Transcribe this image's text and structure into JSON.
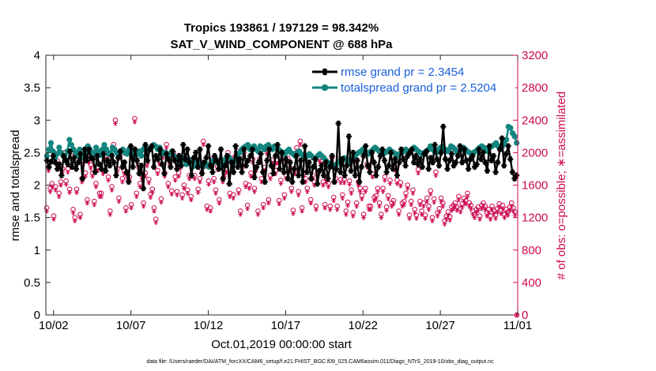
{
  "chart_data": {
    "type": "line",
    "title": "Tropics 193861 / 197129 = 98.342%",
    "subtitle": "SAT_V_WIND_COMPONENT @ 688 hPa",
    "xlabel": "Oct.01,2019 00:00:00 start",
    "ylabel_left": "rmse and totalspread",
    "ylabel_right": "# of obs: o=possible; ∗=assimilated",
    "footnote": "data file: /Users/raeder/DAI/ATM_forcXX/CAM6_setup/f.e21.FHIST_BGC.f09_025.CAM6assim.011/Diags_NTrS_2019-10/obs_diag_output.nc",
    "xlim": [
      1.5,
      32
    ],
    "ylim_left": [
      0,
      4
    ],
    "ylim_right": [
      0,
      3200
    ],
    "x_ticks": [
      2,
      7,
      12,
      17,
      22,
      27,
      32
    ],
    "x_tick_labels": [
      "10/02",
      "10/07",
      "10/12",
      "10/17",
      "10/22",
      "10/27",
      "11/01"
    ],
    "y_left_ticks": [
      "0",
      "0.5",
      "1",
      "1.5",
      "2",
      "2.5",
      "3",
      "3.5",
      "4"
    ],
    "y_right_ticks": [
      "0",
      "400",
      "800",
      "1200",
      "1600",
      "2000",
      "2400",
      "2800",
      "3200"
    ],
    "colors": {
      "rmse": "#000000",
      "spread": "#14857f",
      "obs": "#cc0a52",
      "legend_text": "#1a5fdc",
      "axis": "#262626"
    },
    "legend": [
      {
        "label": "rmse grand pr = 2.3454",
        "series": "rmse"
      },
      {
        "label": "totalspread grand pr = 2.5204",
        "series": "spread"
      }
    ],
    "series": [
      {
        "name": "rmse",
        "axis": "left",
        "values": [
          2.38,
          2.28,
          2.36,
          2.45,
          2.35,
          2.25,
          2.32,
          2.15,
          2.45,
          2.38,
          2.32,
          2.52,
          2.28,
          2.42,
          2.25,
          2.35,
          2.48,
          2.1,
          2.55,
          2.38,
          2.55,
          2.42,
          2.4,
          2.2,
          2.45,
          2.32,
          2.25,
          2.48,
          2.22,
          2.38,
          2.3,
          2.45,
          2.35,
          2.15,
          2.42,
          2.52,
          2.28,
          2.35,
          2.2,
          2.05,
          2.6,
          2.28,
          2.55,
          2.38,
          2.18,
          2.3,
          1.95,
          2.62,
          2.38,
          2.55,
          2.6,
          2.28,
          2.45,
          2.4,
          2.55,
          2.32,
          2.18,
          2.48,
          2.4,
          2.28,
          2.52,
          2.38,
          2.25,
          2.45,
          2.3,
          2.62,
          2.4,
          2.55,
          2.35,
          2.15,
          2.42,
          2.5,
          2.28,
          2.55,
          2.18,
          2.35,
          2.42,
          2.6,
          2.3,
          2.2,
          2.45,
          2.38,
          2.25,
          2.55,
          2.1,
          2.3,
          2.45,
          2.02,
          2.35,
          2.2,
          2.6,
          2.28,
          2.4,
          2.2,
          2.55,
          2.3,
          2.38,
          2.45,
          2.55,
          2.12,
          2.28,
          2.35,
          2.48,
          2.2,
          2.05,
          2.38,
          2.55,
          2.3,
          2.18,
          2.45,
          2.62,
          2.25,
          2.5,
          2.2,
          2.4,
          2.1,
          2.35,
          2.05,
          2.25,
          2.45,
          2.15,
          2.38,
          2.05,
          2.6,
          2.2,
          2.35,
          2.1,
          2.28,
          2.4,
          2.02,
          2.22,
          2.3,
          2.15,
          2.35,
          2.1,
          2.28,
          2.45,
          2.05,
          2.25,
          2.95,
          2.2,
          2.4,
          2.15,
          2.3,
          2.75,
          2.22,
          2.5,
          2.15,
          2.38,
          2.05,
          2.28,
          2.45,
          2.6,
          2.3,
          2.2,
          2.5,
          2.35,
          2.15,
          2.28,
          2.45,
          2.55,
          2.38,
          2.2,
          2.3,
          2.5,
          2.25,
          2.4,
          2.15,
          2.35,
          2.55,
          2.4,
          2.3,
          2.45,
          2.5,
          2.55,
          2.35,
          2.45,
          2.32,
          2.4,
          2.28,
          2.48,
          2.52,
          2.25,
          2.42,
          2.35,
          2.62,
          2.4,
          2.3,
          2.5,
          2.9,
          2.4,
          2.25,
          2.38,
          2.48,
          2.3,
          2.35,
          2.45,
          2.6,
          2.35,
          2.55,
          2.38,
          2.25,
          2.4,
          2.45,
          2.28,
          2.32,
          2.55,
          2.4,
          2.5,
          2.35,
          2.22,
          2.6,
          2.38,
          2.45,
          2.2,
          2.35,
          2.55,
          2.72,
          2.3,
          2.48,
          2.6,
          2.4,
          2.2,
          2.1,
          2.15
        ]
      },
      {
        "name": "totalspread",
        "axis": "left",
        "values": [
          2.45,
          2.55,
          2.65,
          2.52,
          2.42,
          2.48,
          2.58,
          2.5,
          2.45,
          2.4,
          2.52,
          2.7,
          2.62,
          2.55,
          2.5,
          2.45,
          2.55,
          2.48,
          2.42,
          2.5,
          2.6,
          2.55,
          2.45,
          2.5,
          2.58,
          2.52,
          2.46,
          2.55,
          2.62,
          2.55,
          2.48,
          2.5,
          2.58,
          2.55,
          2.5,
          2.45,
          2.52,
          2.55,
          2.5,
          2.48,
          2.55,
          2.52,
          2.45,
          2.4,
          2.48,
          2.52,
          2.45,
          2.55,
          2.6,
          2.52,
          2.55,
          2.58,
          2.62,
          2.6,
          2.55,
          2.58,
          2.52,
          2.48,
          2.5,
          2.45,
          2.48,
          2.52,
          2.45,
          2.4,
          2.38,
          2.35,
          2.42,
          2.38,
          2.32,
          2.4,
          2.35,
          2.28,
          2.3,
          2.38,
          2.35,
          2.3,
          2.28,
          2.35,
          2.32,
          2.28,
          2.3,
          2.38,
          2.42,
          2.35,
          2.32,
          2.28,
          2.35,
          2.4,
          2.45,
          2.42,
          2.38,
          2.35,
          2.4,
          2.45,
          2.5,
          2.55,
          2.58,
          2.6,
          2.62,
          2.55,
          2.58,
          2.6,
          2.55,
          2.52,
          2.6,
          2.58,
          2.55,
          2.6,
          2.62,
          2.58,
          2.55,
          2.6,
          2.58,
          2.55,
          2.52,
          2.5,
          2.48,
          2.52,
          2.55,
          2.5,
          2.48,
          2.45,
          2.5,
          2.52,
          2.48,
          2.45,
          2.42,
          2.45,
          2.48,
          2.45,
          2.42,
          2.4,
          2.45,
          2.48,
          2.45,
          2.42,
          2.38,
          2.35,
          2.32,
          2.3,
          2.28,
          2.32,
          2.35,
          2.38,
          2.4,
          2.42,
          2.38,
          2.35,
          2.4,
          2.42,
          2.45,
          2.48,
          2.5,
          2.52,
          2.55,
          2.52,
          2.5,
          2.48,
          2.52,
          2.55,
          2.58,
          2.55,
          2.52,
          2.5,
          2.48,
          2.5,
          2.52,
          2.55,
          2.52,
          2.5,
          2.48,
          2.45,
          2.48,
          2.5,
          2.52,
          2.55,
          2.52,
          2.5,
          2.55,
          2.58,
          2.55,
          2.52,
          2.5,
          2.48,
          2.5,
          2.52,
          2.55,
          2.6,
          2.55,
          2.52,
          2.5,
          2.55,
          2.58,
          2.6,
          2.55,
          2.52,
          2.55,
          2.6,
          2.58,
          2.55,
          2.5,
          2.52,
          2.55,
          2.58,
          2.55,
          2.52,
          2.5,
          2.48,
          2.5,
          2.52,
          2.55,
          2.58,
          2.6,
          2.58,
          2.55,
          2.52,
          2.58,
          2.6,
          2.62,
          2.65,
          2.6,
          2.55,
          2.6,
          2.65,
          2.7,
          2.9,
          2.88,
          2.8,
          2.75,
          2.65
        ]
      },
      {
        "name": "obs_possible",
        "axis": "right",
        "values": [
          1320,
          1820,
          1560,
          1620,
          1220,
          1580,
          1900,
          1500,
          1640,
          1800,
          2000,
          1650,
          1800,
          1550,
          1960,
          1300,
          1200,
          1550,
          1980,
          1240,
          1680,
          1900,
          1750,
          1420,
          1920,
          1850,
          1750,
          1400,
          1620,
          1820,
          1500,
          1500,
          1780,
          1950,
          1960,
          1700,
          1280,
          1580,
          2100,
          2400,
          1800,
          1440,
          1980,
          1680,
          1780,
          1320,
          1700,
          1700,
          1360,
          1950,
          2420,
          1500,
          1850,
          1620,
          1720,
          1380,
          1750,
          1880,
          1670,
          1490,
          1550,
          1320,
          1180,
          1780,
          1900,
          1430,
          1980,
          1750,
          2100,
          1620,
          1880,
          1530,
          2000,
          1700,
          1520,
          1750,
          1850,
          1480,
          1600,
          1920,
          1540,
          1720,
          1460,
          1900,
          1720,
          1880,
          1550,
          1680,
          1800,
          2140,
          1870,
          1340,
          1650,
          1320,
          1920,
          1680,
          1540,
          1830,
          1420,
          1850,
          1680,
          1750,
          1800,
          2000,
          1500,
          1930,
          1480,
          1950,
          2020,
          1540,
          1280,
          1840,
          2000,
          1620,
          1350,
          1600,
          1750,
          1920,
          1560,
          1820,
          1280,
          1920,
          1680,
          1360,
          1820,
          2030,
          1420,
          1720,
          1910,
          1860,
          1780,
          1910,
          1410,
          1660,
          1940,
          1480,
          1720,
          1930,
          1810,
          1560,
          1290,
          1780,
          2060,
          1520,
          2140,
          1320,
          1750,
          1680,
          1560,
          1920,
          1420,
          1720,
          1640,
          1340,
          1760,
          1930,
          1900,
          1640,
          1360,
          1680,
          1620,
          1340,
          1940,
          1450,
          1680,
          1340,
          1920,
          1670,
          1480,
          1670,
          1280,
          1390,
          1650,
          1540,
          1260,
          1930,
          1380,
          1640,
          1560,
          1470,
          1240,
          1560,
          1860,
          1340,
          1340,
          1740,
          1450,
          1470,
          1560,
          1380,
          1240,
          1560,
          1700,
          1330,
          1470,
          1660,
          1380,
          1410,
          1820,
          1660,
          1280,
          1630,
          1380,
          1400,
          1500,
          1600,
          1230,
          1400,
          1540,
          1300,
          1230,
          1790,
          1400,
          1280,
          1380,
          1230,
          1440,
          1340,
          1530,
          1200,
          1430,
          1760,
          1260,
          1310,
          1440,
          1380,
          1160,
          1220,
          1270,
          1210,
          1330,
          1350,
          1380,
          1330,
          1460,
          1310,
          1370,
          1440,
          1410,
          1500,
          1380,
          1350,
          1280,
          1240,
          1300,
          1330,
          1220,
          1350,
          1380,
          1340,
          1260,
          1300,
          1220,
          1340,
          1290,
          1230,
          1310,
          1370,
          1290,
          1350,
          1240,
          1300,
          1270,
          1330,
          1380,
          1320,
          1270,
          0
        ]
      },
      {
        "name": "obs_assimilated",
        "axis": "right",
        "values": [
          1280,
          1780,
          1520,
          1580,
          1180,
          1540,
          1860,
          1460,
          1600,
          1760,
          1960,
          1610,
          1760,
          1510,
          1920,
          1260,
          1160,
          1510,
          1940,
          1200,
          1640,
          1860,
          1710,
          1380,
          1880,
          1810,
          1710,
          1360,
          1580,
          1780,
          1460,
          1460,
          1740,
          1910,
          1920,
          1660,
          1240,
          1540,
          2060,
          2360,
          1760,
          1400,
          1940,
          1640,
          1740,
          1280,
          1660,
          1660,
          1320,
          1910,
          2380,
          1460,
          1810,
          1580,
          1680,
          1340,
          1710,
          1840,
          1630,
          1450,
          1510,
          1280,
          1140,
          1740,
          1860,
          1390,
          1940,
          1710,
          2060,
          1580,
          1840,
          1490,
          1960,
          1660,
          1480,
          1710,
          1810,
          1440,
          1560,
          1880,
          1500,
          1680,
          1420,
          1860,
          1680,
          1840,
          1510,
          1640,
          1760,
          2100,
          1830,
          1300,
          1610,
          1280,
          1880,
          1640,
          1500,
          1790,
          1380,
          1810,
          1640,
          1710,
          1760,
          1960,
          1460,
          1890,
          1440,
          1910,
          1980,
          1500,
          1240,
          1800,
          1960,
          1580,
          1310,
          1560,
          1710,
          1880,
          1520,
          1780,
          1240,
          1880,
          1640,
          1320,
          1780,
          1990,
          1380,
          1680,
          1870,
          1820,
          1740,
          1870,
          1370,
          1620,
          1900,
          1440,
          1680,
          1890,
          1770,
          1520,
          1250,
          1740,
          2020,
          1480,
          2100,
          1280,
          1710,
          1640,
          1520,
          1880,
          1380,
          1680,
          1600,
          1300,
          1720,
          1890,
          1860,
          1600,
          1320,
          1640,
          1580,
          1300,
          1900,
          1410,
          1640,
          1300,
          1880,
          1630,
          1440,
          1630,
          1240,
          1350,
          1610,
          1500,
          1220,
          1890,
          1340,
          1600,
          1520,
          1430,
          1200,
          1520,
          1820,
          1300,
          1300,
          1700,
          1410,
          1430,
          1520,
          1340,
          1200,
          1520,
          1660,
          1290,
          1430,
          1620,
          1340,
          1370,
          1780,
          1620,
          1240,
          1590,
          1340,
          1360,
          1460,
          1560,
          1190,
          1360,
          1500,
          1260,
          1190,
          1750,
          1360,
          1240,
          1340,
          1190,
          1400,
          1300,
          1490,
          1160,
          1390,
          1720,
          1220,
          1270,
          1400,
          1340,
          1120,
          1180,
          1230,
          1170,
          1290,
          1310,
          1340,
          1290,
          1420,
          1270,
          1330,
          1400,
          1370,
          1460,
          1340,
          1310,
          1240,
          1200,
          1260,
          1290,
          1180,
          1310,
          1340,
          1300,
          1220,
          1260,
          1180,
          1300,
          1250,
          1190,
          1270,
          1330,
          1250,
          1310,
          1200,
          1260,
          1230,
          1290,
          1340,
          1280,
          1230,
          0
        ]
      }
    ]
  }
}
